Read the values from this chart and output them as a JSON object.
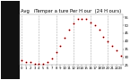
{
  "title": "Avg   iTemper a ture Per H our  (24 H ours)",
  "hours": [
    0,
    1,
    2,
    3,
    4,
    5,
    6,
    7,
    8,
    9,
    10,
    11,
    12,
    13,
    14,
    15,
    16,
    17,
    18,
    19,
    20,
    21,
    22,
    23
  ],
  "temperatures": [
    28,
    27,
    27,
    26,
    26,
    26,
    27,
    29,
    33,
    37,
    42,
    47,
    51,
    54,
    54,
    54,
    52,
    50,
    47,
    43,
    40,
    37,
    34,
    31
  ],
  "dot_color": "#ff0000",
  "bg_color": "#ffffff",
  "left_bg": "#111111",
  "grid_color": "#aaaaaa",
  "ylim_min": 25,
  "ylim_max": 57,
  "title_fontsize": 3.8,
  "tick_fontsize": 2.8,
  "ytick_fontsize": 2.8
}
